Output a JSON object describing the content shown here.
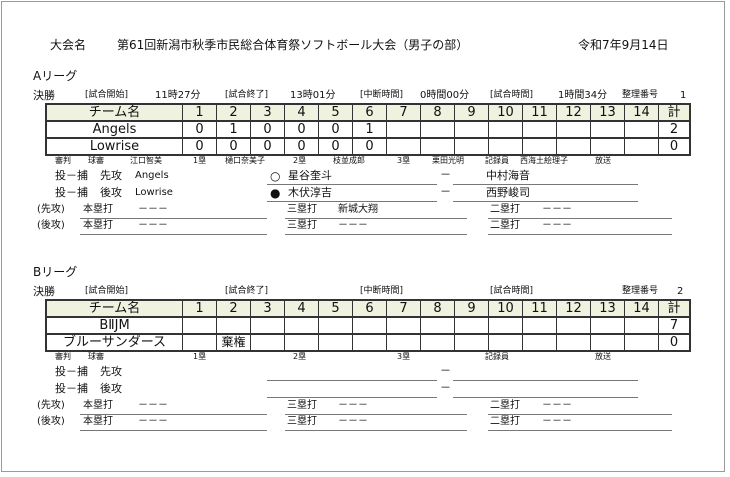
{
  "header": {
    "label": "大会名",
    "title": "第61回新潟市秋季市民総合体育祭ソフトボール大会（男子の部）",
    "date": "令和7年9月14日"
  },
  "leagues": [
    {
      "name": "Aリーグ",
      "round": "決勝",
      "start_label": "[試合開始]",
      "start": "11時27分",
      "end_label": "[試合終了]",
      "end": "13時01分",
      "pause_label": "[中断時間]",
      "pause": "0時間00分",
      "duration_label": "[試合時間]",
      "duration": "1時間34分",
      "ref_no_label": "整理番号",
      "ref_no": "1",
      "columns": [
        "チーム名",
        "1",
        "2",
        "3",
        "4",
        "5",
        "6",
        "7",
        "8",
        "9",
        "10",
        "11",
        "12",
        "13",
        "14",
        "計"
      ],
      "rows": [
        [
          "Angels",
          "0",
          "1",
          "0",
          "0",
          "0",
          "1",
          "",
          "",
          "",
          "",
          "",
          "",
          "",
          "",
          "2"
        ],
        [
          "Lowrise",
          "0",
          "0",
          "0",
          "0",
          "0",
          "0",
          "",
          "",
          "",
          "",
          "",
          "",
          "",
          "",
          "0"
        ]
      ],
      "officials": {
        "umpire": "審判",
        "plate": "球審",
        "plate_name": "江口智美",
        "first": "1塁",
        "first_name": "樋口奈美子",
        "second": "2塁",
        "second_name": "枝並成郎",
        "third": "3塁",
        "third_name": "栗田光明",
        "scorer": "記録員",
        "scorer_name": "西海土絵理子",
        "announcer": "放送",
        "announcer_name": ""
      },
      "battery": [
        {
          "label": "投－捕",
          "side": "先攻",
          "team": "Angels",
          "mark": "○",
          "pitcher": "星谷奎斗",
          "dash": "－",
          "catcher": "中村海音"
        },
        {
          "label": "投－捕",
          "side": "後攻",
          "team": "Lowrise",
          "mark": "●",
          "pitcher": "木伏淳吉",
          "dash": "－",
          "catcher": "西野峻司"
        }
      ],
      "hits": [
        {
          "side": "(先攻)",
          "hr": "本塁打",
          "hr_val": "－－－",
          "triple": "三塁打",
          "triple_val": "新城大翔",
          "double": "二塁打",
          "double_val": "－－－"
        },
        {
          "side": "(後攻)",
          "hr": "本塁打",
          "hr_val": "－－－",
          "triple": "三塁打",
          "triple_val": "－－－",
          "double": "二塁打",
          "double_val": "－－－"
        }
      ]
    },
    {
      "name": "Bリーグ",
      "round": "決勝",
      "start_label": "[試合開始]",
      "start": "",
      "end_label": "[試合終了]",
      "end": "",
      "pause_label": "[中断時間]",
      "pause": "",
      "duration_label": "[試合時間]",
      "duration": "",
      "ref_no_label": "整理番号",
      "ref_no": "2",
      "columns": [
        "チーム名",
        "1",
        "2",
        "3",
        "4",
        "5",
        "6",
        "7",
        "8",
        "9",
        "10",
        "11",
        "12",
        "13",
        "14",
        "計"
      ],
      "rows": [
        [
          "BⅡJM",
          "",
          "",
          "",
          "",
          "",
          "",
          "",
          "",
          "",
          "",
          "",
          "",
          "",
          "",
          "7"
        ],
        [
          "ブルーサンダース",
          "",
          "棄権",
          "",
          "",
          "",
          "",
          "",
          "",
          "",
          "",
          "",
          "",
          "",
          "",
          "0"
        ]
      ],
      "officials": {
        "umpire": "審判",
        "plate": "球審",
        "plate_name": "",
        "first": "1塁",
        "first_name": "",
        "second": "2塁",
        "second_name": "",
        "third": "3塁",
        "third_name": "",
        "scorer": "記録員",
        "scorer_name": "",
        "announcer": "放送",
        "announcer_name": ""
      },
      "battery": [
        {
          "label": "投－捕",
          "side": "先攻",
          "team": "",
          "mark": "",
          "pitcher": "",
          "dash": "－",
          "catcher": ""
        },
        {
          "label": "投－捕",
          "side": "後攻",
          "team": "",
          "mark": "",
          "pitcher": "",
          "dash": "－",
          "catcher": ""
        }
      ],
      "hits": [
        {
          "side": "(先攻)",
          "hr": "本塁打",
          "hr_val": "－－－",
          "triple": "三塁打",
          "triple_val": "－－－",
          "double": "二塁打",
          "double_val": "－－－"
        },
        {
          "side": "(後攻)",
          "hr": "本塁打",
          "hr_val": "－－－",
          "triple": "三塁打",
          "triple_val": "－－－",
          "double": "二塁打",
          "double_val": "－－－"
        }
      ]
    }
  ]
}
